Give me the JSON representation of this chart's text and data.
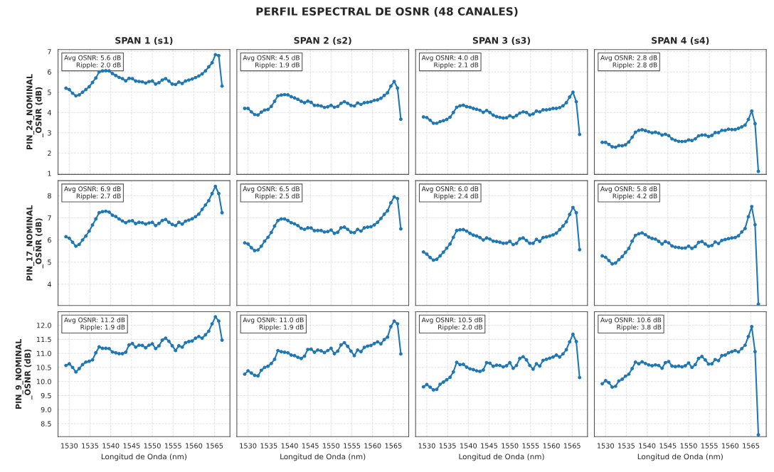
{
  "chart_data": [
    {
      "type": "line",
      "title": "SPAN 1 (s1)",
      "ylabel": "PIN_24_NOMINAL\n_OSNR (dB)",
      "annotations": [
        "PERFIL ESPECTRAL DE OSNR (48 CANALES)",
        "Avg OSNR: 5.6 dB\nRipple: 2.0 dB"
      ],
      "x": [
        1529.2,
        1530.0,
        1530.8,
        1531.6,
        1532.4,
        1533.2,
        1534.0,
        1534.8,
        1535.6,
        1536.4,
        1537.2,
        1538.0,
        1538.8,
        1539.6,
        1540.4,
        1541.2,
        1542.0,
        1542.8,
        1543.6,
        1544.4,
        1545.2,
        1546.0,
        1546.8,
        1547.6,
        1548.4,
        1549.2,
        1550.0,
        1550.8,
        1551.6,
        1552.4,
        1553.2,
        1554.0,
        1554.8,
        1555.6,
        1556.4,
        1557.2,
        1558.0,
        1558.8,
        1559.6,
        1560.4,
        1561.2,
        1562.0,
        1562.8,
        1563.6,
        1564.4,
        1565.2,
        1566.0,
        1566.8
      ],
      "series": [
        {
          "color": "#1f77b4",
          "values": [
            5.2,
            5.13,
            4.95,
            4.82,
            4.87,
            5.0,
            5.13,
            5.27,
            5.48,
            5.7,
            6.0,
            6.05,
            6.06,
            6.05,
            5.92,
            5.82,
            5.73,
            5.67,
            5.56,
            5.68,
            5.67,
            5.55,
            5.53,
            5.51,
            5.45,
            5.52,
            5.55,
            5.4,
            5.47,
            5.6,
            5.67,
            5.55,
            5.4,
            5.38,
            5.5,
            5.43,
            5.55,
            5.6,
            5.65,
            5.72,
            5.8,
            5.9,
            6.05,
            6.25,
            6.45,
            6.85,
            6.8,
            5.3
          ]
        }
      ],
      "xlim": [
        1527.3,
        1568.7
      ],
      "xticks": [
        1530,
        1535,
        1540,
        1545,
        1550,
        1555,
        1560,
        1565
      ],
      "ylim": [
        0.95,
        7.1
      ],
      "yticks": [
        1,
        2,
        3,
        4,
        5,
        6,
        7
      ],
      "tick_labels": "y",
      "grid": true,
      "marker": "circle",
      "line_style": "solid"
    },
    {
      "type": "line",
      "title": "SPAN 2 (s2)",
      "annotations": [
        "Avg OSNR: 4.5 dB\nRipple: 1.9 dB"
      ],
      "x": [
        1529.2,
        1530.0,
        1530.8,
        1531.6,
        1532.4,
        1533.2,
        1534.0,
        1534.8,
        1535.6,
        1536.4,
        1537.2,
        1538.0,
        1538.8,
        1539.6,
        1540.4,
        1541.2,
        1542.0,
        1542.8,
        1543.6,
        1544.4,
        1545.2,
        1546.0,
        1546.8,
        1547.6,
        1548.4,
        1549.2,
        1550.0,
        1550.8,
        1551.6,
        1552.4,
        1553.2,
        1554.0,
        1554.8,
        1555.6,
        1556.4,
        1557.2,
        1558.0,
        1558.8,
        1559.6,
        1560.4,
        1561.2,
        1562.0,
        1562.8,
        1563.6,
        1564.4,
        1565.2,
        1566.0,
        1566.8
      ],
      "series": [
        {
          "color": "#1f77b4",
          "values": [
            4.2,
            4.2,
            4.03,
            3.9,
            3.88,
            4.02,
            4.12,
            4.15,
            4.3,
            4.55,
            4.82,
            4.86,
            4.88,
            4.87,
            4.78,
            4.72,
            4.65,
            4.55,
            4.48,
            4.56,
            4.5,
            4.35,
            4.35,
            4.32,
            4.25,
            4.28,
            4.35,
            4.26,
            4.3,
            4.45,
            4.53,
            4.45,
            4.35,
            4.32,
            4.47,
            4.4,
            4.48,
            4.5,
            4.53,
            4.6,
            4.62,
            4.7,
            4.84,
            4.97,
            5.3,
            5.53,
            5.2,
            3.67
          ]
        }
      ],
      "xlim": [
        1527.3,
        1568.7
      ],
      "xticks": [
        1530,
        1535,
        1540,
        1545,
        1550,
        1555,
        1560,
        1565
      ],
      "ylim": [
        0.95,
        7.1
      ],
      "yticks": [
        1,
        2,
        3,
        4,
        5,
        6,
        7
      ],
      "tick_labels": false,
      "grid": true,
      "marker": "circle",
      "line_style": "solid"
    },
    {
      "type": "line",
      "title": "SPAN 3 (s3)",
      "annotations": [
        "Avg OSNR: 4.0 dB\nRipple: 2.1 dB"
      ],
      "x": [
        1529.2,
        1530.0,
        1530.8,
        1531.6,
        1532.4,
        1533.2,
        1534.0,
        1534.8,
        1535.6,
        1536.4,
        1537.2,
        1538.0,
        1538.8,
        1539.6,
        1540.4,
        1541.2,
        1542.0,
        1542.8,
        1543.6,
        1544.4,
        1545.2,
        1546.0,
        1546.8,
        1547.6,
        1548.4,
        1549.2,
        1550.0,
        1550.8,
        1551.6,
        1552.4,
        1553.2,
        1554.0,
        1554.8,
        1555.6,
        1556.4,
        1557.2,
        1558.0,
        1558.8,
        1559.6,
        1560.4,
        1561.2,
        1562.0,
        1562.8,
        1563.6,
        1564.4,
        1565.2,
        1566.0,
        1566.8
      ],
      "series": [
        {
          "color": "#1f77b4",
          "values": [
            3.78,
            3.75,
            3.62,
            3.47,
            3.47,
            3.55,
            3.6,
            3.66,
            3.77,
            4.0,
            4.26,
            4.33,
            4.36,
            4.29,
            4.26,
            4.2,
            4.16,
            4.11,
            4.01,
            4.1,
            4.0,
            3.87,
            3.8,
            3.76,
            3.73,
            3.74,
            3.84,
            3.76,
            3.85,
            3.97,
            4.03,
            4.0,
            3.88,
            3.93,
            4.07,
            4.03,
            4.13,
            4.13,
            4.16,
            4.2,
            4.2,
            4.24,
            4.33,
            4.48,
            4.76,
            5.0,
            4.53,
            2.92
          ]
        }
      ],
      "xlim": [
        1527.3,
        1568.7
      ],
      "xticks": [
        1530,
        1535,
        1540,
        1545,
        1550,
        1555,
        1560,
        1565
      ],
      "ylim": [
        0.95,
        7.1
      ],
      "yticks": [
        1,
        2,
        3,
        4,
        5,
        6,
        7
      ],
      "tick_labels": false,
      "grid": true,
      "marker": "circle",
      "line_style": "solid"
    },
    {
      "type": "line",
      "title": "SPAN 4 (s4)",
      "annotations": [
        "Avg OSNR: 2.8 dB\nRipple: 2.8 dB"
      ],
      "x": [
        1529.2,
        1530.0,
        1530.8,
        1531.6,
        1532.4,
        1533.2,
        1534.0,
        1534.8,
        1535.6,
        1536.4,
        1537.2,
        1538.0,
        1538.8,
        1539.6,
        1540.4,
        1541.2,
        1542.0,
        1542.8,
        1543.6,
        1544.4,
        1545.2,
        1546.0,
        1546.8,
        1547.6,
        1548.4,
        1549.2,
        1550.0,
        1550.8,
        1551.6,
        1552.4,
        1553.2,
        1554.0,
        1554.8,
        1555.6,
        1556.4,
        1557.2,
        1558.0,
        1558.8,
        1559.6,
        1560.4,
        1561.2,
        1562.0,
        1562.8,
        1563.6,
        1564.4,
        1565.2,
        1566.0,
        1566.8
      ],
      "series": [
        {
          "color": "#1f77b4",
          "values": [
            2.53,
            2.53,
            2.43,
            2.31,
            2.29,
            2.37,
            2.36,
            2.41,
            2.55,
            2.78,
            3.03,
            3.12,
            3.15,
            3.11,
            3.05,
            3.0,
            3.03,
            2.98,
            2.89,
            2.93,
            2.86,
            2.7,
            2.63,
            2.58,
            2.57,
            2.58,
            2.65,
            2.62,
            2.7,
            2.85,
            2.89,
            2.89,
            2.82,
            2.87,
            3.01,
            3.01,
            3.12,
            3.12,
            3.18,
            3.16,
            3.16,
            3.22,
            3.29,
            3.38,
            3.66,
            4.07,
            3.45,
            1.1
          ]
        }
      ],
      "xlim": [
        1527.3,
        1568.7
      ],
      "xticks": [
        1530,
        1535,
        1540,
        1545,
        1550,
        1555,
        1560,
        1565
      ],
      "ylim": [
        0.95,
        7.1
      ],
      "yticks": [
        1,
        2,
        3,
        4,
        5,
        6,
        7
      ],
      "tick_labels": false,
      "grid": true,
      "marker": "circle",
      "line_style": "solid"
    },
    {
      "type": "line",
      "ylabel": "PIN_17_NOMINAL\n_OSNR (dB)",
      "annotations": [
        "Avg OSNR: 6.9 dB\nRipple: 2.7 dB"
      ],
      "x": [
        1529.2,
        1530.0,
        1530.8,
        1531.6,
        1532.4,
        1533.2,
        1534.0,
        1534.8,
        1535.6,
        1536.4,
        1537.2,
        1538.0,
        1538.8,
        1539.6,
        1540.4,
        1541.2,
        1542.0,
        1542.8,
        1543.6,
        1544.4,
        1545.2,
        1546.0,
        1546.8,
        1547.6,
        1548.4,
        1549.2,
        1550.0,
        1550.8,
        1551.6,
        1552.4,
        1553.2,
        1554.0,
        1554.8,
        1555.6,
        1556.4,
        1557.2,
        1558.0,
        1558.8,
        1559.6,
        1560.4,
        1561.2,
        1562.0,
        1562.8,
        1563.6,
        1564.4,
        1565.2,
        1566.0,
        1566.8
      ],
      "series": [
        {
          "color": "#1f77b4",
          "values": [
            6.15,
            6.08,
            5.9,
            5.72,
            5.8,
            6.0,
            6.18,
            6.4,
            6.68,
            6.95,
            7.23,
            7.28,
            7.3,
            7.26,
            7.12,
            7.06,
            6.95,
            6.86,
            6.78,
            6.85,
            6.87,
            6.74,
            6.8,
            6.78,
            6.72,
            6.77,
            6.8,
            6.65,
            6.75,
            6.88,
            6.93,
            6.8,
            6.7,
            6.65,
            6.8,
            6.72,
            6.85,
            6.9,
            6.96,
            7.05,
            7.17,
            7.38,
            7.58,
            7.78,
            8.1,
            8.42,
            8.1,
            7.23
          ]
        }
      ],
      "xlim": [
        1527.3,
        1568.7
      ],
      "xticks": [
        1530,
        1535,
        1540,
        1545,
        1550,
        1555,
        1560,
        1565
      ],
      "ylim": [
        3.04,
        8.68
      ],
      "yticks": [
        4,
        5,
        6,
        7,
        8
      ],
      "tick_labels": "y",
      "grid": true,
      "marker": "circle",
      "line_style": "solid"
    },
    {
      "type": "line",
      "annotations": [
        "Avg OSNR: 6.5 dB\nRipple: 2.5 dB"
      ],
      "x": [
        1529.2,
        1530.0,
        1530.8,
        1531.6,
        1532.4,
        1533.2,
        1534.0,
        1534.8,
        1535.6,
        1536.4,
        1537.2,
        1538.0,
        1538.8,
        1539.6,
        1540.4,
        1541.2,
        1542.0,
        1542.8,
        1543.6,
        1544.4,
        1545.2,
        1546.0,
        1546.8,
        1547.6,
        1548.4,
        1549.2,
        1550.0,
        1550.8,
        1551.6,
        1552.4,
        1553.2,
        1554.0,
        1554.8,
        1555.6,
        1556.4,
        1557.2,
        1558.0,
        1558.8,
        1559.6,
        1560.4,
        1561.2,
        1562.0,
        1562.8,
        1563.6,
        1564.4,
        1565.2,
        1566.0,
        1566.8
      ],
      "series": [
        {
          "color": "#1f77b4",
          "values": [
            5.87,
            5.82,
            5.65,
            5.52,
            5.55,
            5.72,
            5.95,
            6.12,
            6.34,
            6.63,
            6.88,
            6.95,
            6.95,
            6.88,
            6.78,
            6.73,
            6.65,
            6.53,
            6.48,
            6.55,
            6.54,
            6.42,
            6.43,
            6.43,
            6.36,
            6.38,
            6.45,
            6.3,
            6.35,
            6.55,
            6.58,
            6.48,
            6.35,
            6.33,
            6.48,
            6.4,
            6.55,
            6.58,
            6.6,
            6.68,
            6.8,
            6.97,
            7.16,
            7.32,
            7.68,
            7.95,
            7.87,
            6.5
          ]
        }
      ],
      "xlim": [
        1527.3,
        1568.7
      ],
      "xticks": [
        1530,
        1535,
        1540,
        1545,
        1550,
        1555,
        1560,
        1565
      ],
      "ylim": [
        3.04,
        8.68
      ],
      "yticks": [
        4,
        5,
        6,
        7,
        8
      ],
      "tick_labels": false,
      "grid": true,
      "marker": "circle",
      "line_style": "solid"
    },
    {
      "type": "line",
      "annotations": [
        "Avg OSNR: 6.0 dB\nRipple: 2.4 dB"
      ],
      "x": [
        1529.2,
        1530.0,
        1530.8,
        1531.6,
        1532.4,
        1533.2,
        1534.0,
        1534.8,
        1535.6,
        1536.4,
        1537.2,
        1538.0,
        1538.8,
        1539.6,
        1540.4,
        1541.2,
        1542.0,
        1542.8,
        1543.6,
        1544.4,
        1545.2,
        1546.0,
        1546.8,
        1547.6,
        1548.4,
        1549.2,
        1550.0,
        1550.8,
        1551.6,
        1552.4,
        1553.2,
        1554.0,
        1554.8,
        1555.6,
        1556.4,
        1557.2,
        1558.0,
        1558.8,
        1559.6,
        1560.4,
        1561.2,
        1562.0,
        1562.8,
        1563.6,
        1564.4,
        1565.2,
        1566.0,
        1566.8
      ],
      "series": [
        {
          "color": "#1f77b4",
          "values": [
            5.46,
            5.36,
            5.21,
            5.09,
            5.13,
            5.28,
            5.45,
            5.63,
            5.82,
            6.12,
            6.43,
            6.46,
            6.47,
            6.4,
            6.3,
            6.22,
            6.18,
            6.11,
            6.0,
            6.09,
            6.04,
            5.95,
            5.93,
            5.9,
            5.85,
            5.86,
            5.94,
            5.79,
            5.85,
            6.05,
            6.09,
            5.98,
            5.85,
            5.85,
            6.03,
            5.94,
            6.11,
            6.14,
            6.18,
            6.23,
            6.31,
            6.47,
            6.63,
            6.82,
            7.15,
            7.47,
            7.23,
            5.56
          ]
        }
      ],
      "xlim": [
        1527.3,
        1568.7
      ],
      "xticks": [
        1530,
        1535,
        1540,
        1545,
        1550,
        1555,
        1560,
        1565
      ],
      "ylim": [
        3.04,
        8.68
      ],
      "yticks": [
        4,
        5,
        6,
        7,
        8
      ],
      "tick_labels": false,
      "grid": true,
      "marker": "circle",
      "line_style": "solid"
    },
    {
      "type": "line",
      "annotations": [
        "Avg OSNR: 5.8 dB\nRipple: 4.2 dB"
      ],
      "x": [
        1529.2,
        1530.0,
        1530.8,
        1531.6,
        1532.4,
        1533.2,
        1534.0,
        1534.8,
        1535.6,
        1536.4,
        1537.2,
        1538.0,
        1538.8,
        1539.6,
        1540.4,
        1541.2,
        1542.0,
        1542.8,
        1543.6,
        1544.4,
        1545.2,
        1546.0,
        1546.8,
        1547.6,
        1548.4,
        1549.2,
        1550.0,
        1550.8,
        1551.6,
        1552.4,
        1553.2,
        1554.0,
        1554.8,
        1555.6,
        1556.4,
        1557.2,
        1558.0,
        1558.8,
        1559.6,
        1560.4,
        1561.2,
        1562.0,
        1562.8,
        1563.6,
        1564.4,
        1565.2,
        1566.0,
        1566.8
      ],
      "series": [
        {
          "color": "#1f77b4",
          "values": [
            5.28,
            5.22,
            5.07,
            4.92,
            4.96,
            5.11,
            5.25,
            5.44,
            5.62,
            5.95,
            6.21,
            6.28,
            6.32,
            6.24,
            6.13,
            6.07,
            6.04,
            5.94,
            5.82,
            5.93,
            5.87,
            5.73,
            5.68,
            5.66,
            5.63,
            5.64,
            5.72,
            5.62,
            5.7,
            5.89,
            5.93,
            5.82,
            5.72,
            5.75,
            5.91,
            5.84,
            5.98,
            6.02,
            6.06,
            6.09,
            6.11,
            6.19,
            6.36,
            6.52,
            7.05,
            7.51,
            6.69,
            3.1
          ]
        }
      ],
      "xlim": [
        1527.3,
        1568.7
      ],
      "xticks": [
        1530,
        1535,
        1540,
        1545,
        1550,
        1555,
        1560,
        1565
      ],
      "ylim": [
        3.04,
        8.68
      ],
      "yticks": [
        4,
        5,
        6,
        7,
        8
      ],
      "tick_labels": false,
      "grid": true,
      "marker": "circle",
      "line_style": "solid"
    },
    {
      "type": "line",
      "xlabel": "Longitud de Onda (nm)",
      "ylabel": "PIN_9_NOMINAL\n_OSNR (dB)",
      "annotations": [
        "Avg OSNR: 11.2 dB\nRipple: 1.9 dB"
      ],
      "x": [
        1529.2,
        1530.0,
        1530.8,
        1531.6,
        1532.4,
        1533.2,
        1534.0,
        1534.8,
        1535.6,
        1536.4,
        1537.2,
        1538.0,
        1538.8,
        1539.6,
        1540.4,
        1541.2,
        1542.0,
        1542.8,
        1543.6,
        1544.4,
        1545.2,
        1546.0,
        1546.8,
        1547.6,
        1548.4,
        1549.2,
        1550.0,
        1550.8,
        1551.6,
        1552.4,
        1553.2,
        1554.0,
        1554.8,
        1555.6,
        1556.4,
        1557.2,
        1558.0,
        1558.8,
        1559.6,
        1560.4,
        1561.2,
        1562.0,
        1562.8,
        1563.6,
        1564.4,
        1565.2,
        1566.0,
        1566.8
      ],
      "series": [
        {
          "color": "#1f77b4",
          "values": [
            10.57,
            10.63,
            10.5,
            10.34,
            10.46,
            10.6,
            10.69,
            10.72,
            10.77,
            11.02,
            11.23,
            11.18,
            11.18,
            11.17,
            11.05,
            11.02,
            10.99,
            10.99,
            11.04,
            11.3,
            11.35,
            11.22,
            11.29,
            11.28,
            11.2,
            11.29,
            11.34,
            11.17,
            11.27,
            11.47,
            11.54,
            11.43,
            11.27,
            11.1,
            11.27,
            11.22,
            11.38,
            11.42,
            11.44,
            11.54,
            11.6,
            11.54,
            11.66,
            11.79,
            12.05,
            12.3,
            12.15,
            11.47
          ]
        }
      ],
      "xlim": [
        1527.3,
        1568.7
      ],
      "xticks": [
        1530,
        1535,
        1540,
        1545,
        1550,
        1555,
        1560,
        1565
      ],
      "ylim": [
        8.04,
        12.48
      ],
      "yticks": [
        {
          "value": 8.5,
          "label": "8.5"
        },
        {
          "value": 9.0,
          "label": "9.0"
        },
        {
          "value": 9.5,
          "label": "9.5"
        },
        {
          "value": 10.0,
          "label": "10.0"
        },
        {
          "value": 10.5,
          "label": "10.5"
        },
        {
          "value": 11.0,
          "label": "11.0"
        },
        {
          "value": 11.5,
          "label": "11.5"
        },
        {
          "value": 12.0,
          "label": "12.0"
        }
      ],
      "grid": true,
      "marker": "circle",
      "line_style": "solid"
    },
    {
      "type": "line",
      "xlabel": "Longitud de Onda (nm)",
      "annotations": [
        "Avg OSNR: 11.0 dB\nRipple: 1.9 dB"
      ],
      "x": [
        1529.2,
        1530.0,
        1530.8,
        1531.6,
        1532.4,
        1533.2,
        1534.0,
        1534.8,
        1535.6,
        1536.4,
        1537.2,
        1538.0,
        1538.8,
        1539.6,
        1540.4,
        1541.2,
        1542.0,
        1542.8,
        1543.6,
        1544.4,
        1545.2,
        1546.0,
        1546.8,
        1547.6,
        1548.4,
        1549.2,
        1550.0,
        1550.8,
        1551.6,
        1552.4,
        1553.2,
        1554.0,
        1554.8,
        1555.6,
        1556.4,
        1557.2,
        1558.0,
        1558.8,
        1559.6,
        1560.4,
        1561.2,
        1562.0,
        1562.8,
        1563.6,
        1564.4,
        1565.2,
        1566.0,
        1566.8
      ],
      "series": [
        {
          "color": "#1f77b4",
          "values": [
            10.26,
            10.38,
            10.3,
            10.22,
            10.2,
            10.4,
            10.5,
            10.54,
            10.64,
            10.79,
            11.1,
            11.06,
            11.04,
            11.02,
            10.94,
            10.92,
            10.86,
            10.82,
            10.9,
            11.14,
            11.15,
            11.04,
            11.12,
            11.09,
            11.03,
            11.1,
            11.18,
            10.99,
            11.08,
            11.3,
            11.38,
            11.25,
            11.08,
            10.92,
            11.12,
            11.06,
            11.21,
            11.26,
            11.28,
            11.35,
            11.41,
            11.34,
            11.49,
            11.58,
            11.95,
            12.15,
            12.05,
            10.98
          ]
        }
      ],
      "xlim": [
        1527.3,
        1568.7
      ],
      "xticks": [
        1530,
        1535,
        1540,
        1545,
        1550,
        1555,
        1560,
        1565
      ],
      "ylim": [
        8.04,
        12.48
      ],
      "yticks": [
        8.5,
        9.0,
        9.5,
        10.0,
        10.5,
        11.0,
        11.5,
        12.0
      ],
      "tick_labels": "x",
      "grid": true,
      "marker": "circle",
      "line_style": "solid"
    },
    {
      "type": "line",
      "xlabel": "Longitud de Onda (nm)",
      "annotations": [
        "Avg OSNR: 10.5 dB\nRipple: 2.0 dB"
      ],
      "x": [
        1529.2,
        1530.0,
        1530.8,
        1531.6,
        1532.4,
        1533.2,
        1534.0,
        1534.8,
        1535.6,
        1536.4,
        1537.2,
        1538.0,
        1538.8,
        1539.6,
        1540.4,
        1541.2,
        1542.0,
        1542.8,
        1543.6,
        1544.4,
        1545.2,
        1546.0,
        1546.8,
        1547.6,
        1548.4,
        1549.2,
        1550.0,
        1550.8,
        1551.6,
        1552.4,
        1553.2,
        1554.0,
        1554.8,
        1555.6,
        1556.4,
        1557.2,
        1558.0,
        1558.8,
        1559.6,
        1560.4,
        1561.2,
        1562.0,
        1562.8,
        1563.6,
        1564.4,
        1565.2,
        1566.0,
        1566.8
      ],
      "series": [
        {
          "color": "#1f77b4",
          "values": [
            9.81,
            9.89,
            9.8,
            9.7,
            9.72,
            9.9,
            9.98,
            10.06,
            10.15,
            10.34,
            10.68,
            10.6,
            10.61,
            10.51,
            10.45,
            10.42,
            10.38,
            10.36,
            10.41,
            10.67,
            10.65,
            10.54,
            10.58,
            10.57,
            10.52,
            10.56,
            10.67,
            10.47,
            10.57,
            10.82,
            10.88,
            10.77,
            10.57,
            10.44,
            10.63,
            10.55,
            10.75,
            10.79,
            10.83,
            10.87,
            10.94,
            10.87,
            10.98,
            11.13,
            11.41,
            11.68,
            11.42,
            10.14
          ]
        }
      ],
      "xlim": [
        1527.3,
        1568.7
      ],
      "xticks": [
        1530,
        1535,
        1540,
        1545,
        1550,
        1555,
        1560,
        1565
      ],
      "ylim": [
        8.04,
        12.48
      ],
      "yticks": [
        8.5,
        9.0,
        9.5,
        10.0,
        10.5,
        11.0,
        11.5,
        12.0
      ],
      "tick_labels": "x",
      "grid": true,
      "marker": "circle",
      "line_style": "solid"
    },
    {
      "type": "line",
      "xlabel": "Longitud de Onda (nm)",
      "annotations": [
        "Avg OSNR: 10.6 dB\nRipple: 3.8 dB"
      ],
      "x": [
        1529.2,
        1530.0,
        1530.8,
        1531.6,
        1532.4,
        1533.2,
        1534.0,
        1534.8,
        1535.6,
        1536.4,
        1537.2,
        1538.0,
        1538.8,
        1539.6,
        1540.4,
        1541.2,
        1542.0,
        1542.8,
        1543.6,
        1544.4,
        1545.2,
        1546.0,
        1546.8,
        1547.6,
        1548.4,
        1549.2,
        1550.0,
        1550.8,
        1551.6,
        1552.4,
        1553.2,
        1554.0,
        1554.8,
        1555.6,
        1556.4,
        1557.2,
        1558.0,
        1558.8,
        1559.6,
        1560.4,
        1561.2,
        1562.0,
        1562.8,
        1563.6,
        1564.4,
        1565.2,
        1566.0,
        1566.8
      ],
      "series": [
        {
          "color": "#1f77b4",
          "values": [
            9.92,
            10.03,
            9.96,
            9.8,
            9.83,
            10.02,
            10.08,
            10.19,
            10.26,
            10.46,
            10.69,
            10.63,
            10.7,
            10.64,
            10.59,
            10.56,
            10.59,
            10.57,
            10.47,
            10.67,
            10.71,
            10.55,
            10.53,
            10.55,
            10.52,
            10.56,
            10.66,
            10.5,
            10.6,
            10.82,
            10.89,
            10.77,
            10.62,
            10.63,
            10.78,
            10.74,
            10.92,
            10.94,
            11.02,
            11.06,
            11.1,
            11.05,
            11.17,
            11.29,
            11.6,
            11.95,
            11.06,
            8.1
          ]
        }
      ],
      "xlim": [
        1527.3,
        1568.7
      ],
      "xticks": [
        1530,
        1535,
        1540,
        1545,
        1550,
        1555,
        1560,
        1565
      ],
      "ylim": [
        8.04,
        12.48
      ],
      "yticks": [
        8.5,
        9.0,
        9.5,
        10.0,
        10.5,
        11.0,
        11.5,
        12.0
      ],
      "tick_labels": "x",
      "grid": true,
      "marker": "circle",
      "line_style": "solid"
    }
  ]
}
